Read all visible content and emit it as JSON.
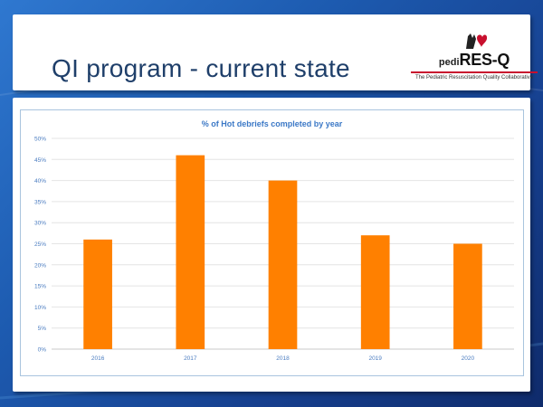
{
  "slide": {
    "title": "QI program - current state"
  },
  "logo": {
    "prefix": "pedi",
    "name": "RES-Q",
    "tagline": "The Pediatric Resuscitation Quality Collaborative"
  },
  "colors": {
    "bar": "#ff8000",
    "title_text": "#1f3f6a",
    "chart_title": "#3b78c6",
    "grid": "#e4e4e4",
    "tick": "#4a7cc0"
  },
  "chart_data": {
    "type": "bar",
    "title": "% of Hot debriefs completed by year",
    "categories": [
      "2016",
      "2017",
      "2018",
      "2019",
      "2020"
    ],
    "values": [
      26,
      46,
      40,
      27,
      25
    ],
    "ylim": [
      0,
      50
    ],
    "yticks": [
      0,
      5,
      10,
      15,
      20,
      25,
      30,
      35,
      40,
      45,
      50
    ],
    "ytick_labels": [
      "0%",
      "5%",
      "10%",
      "15%",
      "20%",
      "25%",
      "30%",
      "35%",
      "40%",
      "45%",
      "50%"
    ],
    "xlabel": "",
    "ylabel": "",
    "grid": true
  }
}
